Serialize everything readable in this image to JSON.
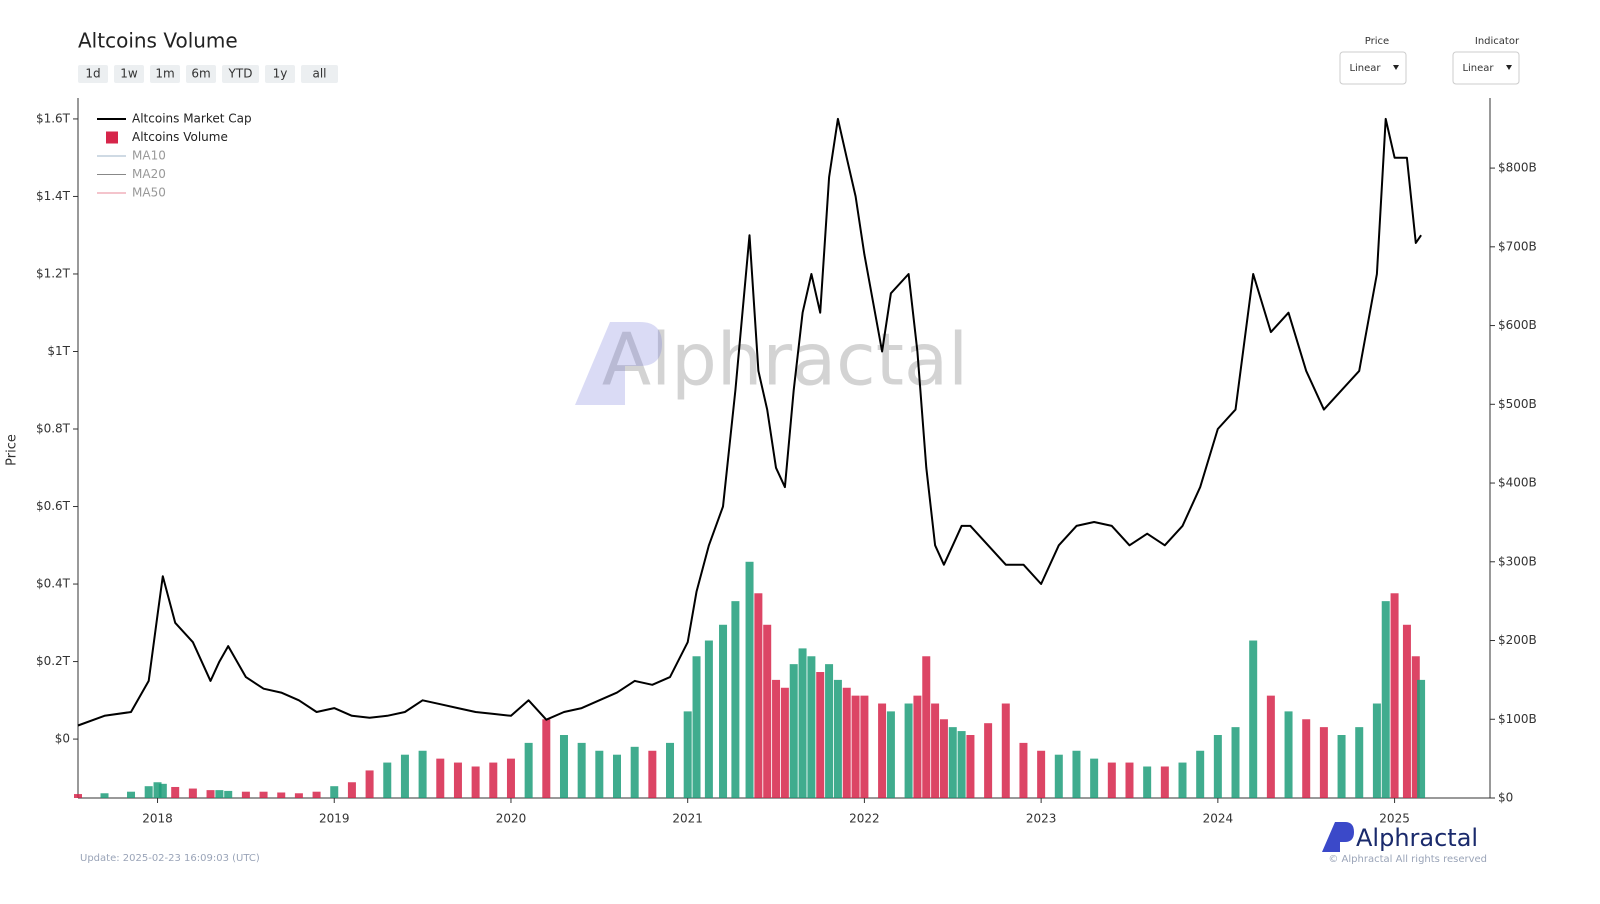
{
  "ui": {
    "range_buttons": [
      "1d",
      "1w",
      "1m",
      "6m",
      "YTD",
      "1y",
      "all"
    ],
    "price_select": {
      "label": "Price",
      "value": "Linear"
    },
    "indicator_select": {
      "label": "Indicator",
      "value": "Linear"
    },
    "update_text": "Update: 2025-02-23 16:09:03 (UTC)",
    "watermark": "Alphractal",
    "logo": "Alphractal",
    "copyright": "© Alphractal All rights reserved"
  },
  "chart_data": {
    "type": "line-bar",
    "title": "Altcoins Volume",
    "y_label": "Price",
    "x": [
      2017.55,
      2017.7,
      2017.85,
      2017.95,
      2018.0,
      2018.03,
      2018.1,
      2018.2,
      2018.3,
      2018.35,
      2018.4,
      2018.5,
      2018.6,
      2018.7,
      2018.8,
      2018.9,
      2019.0,
      2019.1,
      2019.2,
      2019.3,
      2019.4,
      2019.5,
      2019.6,
      2019.7,
      2019.8,
      2019.9,
      2020.0,
      2020.1,
      2020.2,
      2020.3,
      2020.4,
      2020.5,
      2020.6,
      2020.7,
      2020.8,
      2020.9,
      2021.0,
      2021.05,
      2021.12,
      2021.2,
      2021.27,
      2021.35,
      2021.4,
      2021.45,
      2021.5,
      2021.55,
      2021.6,
      2021.65,
      2021.7,
      2021.75,
      2021.8,
      2021.85,
      2021.9,
      2021.95,
      2022.0,
      2022.1,
      2022.15,
      2022.25,
      2022.3,
      2022.35,
      2022.4,
      2022.45,
      2022.5,
      2022.55,
      2022.6,
      2022.7,
      2022.8,
      2022.9,
      2023.0,
      2023.1,
      2023.2,
      2023.3,
      2023.4,
      2023.5,
      2023.6,
      2023.7,
      2023.8,
      2023.9,
      2024.0,
      2024.1,
      2024.2,
      2024.3,
      2024.4,
      2024.5,
      2024.6,
      2024.7,
      2024.8,
      2024.9,
      2024.95,
      2025.0,
      2025.07,
      2025.12,
      2025.15
    ],
    "xlim": [
      2017.55,
      2025.54
    ],
    "xticks": [
      2018,
      2019,
      2020,
      2021,
      2022,
      2023,
      2024,
      2025
    ],
    "ylim": [
      -0.152,
      1.654
    ],
    "yticks": [
      {
        "value": 0,
        "label": "$0"
      },
      {
        "value": 0.2,
        "label": "$0.2T"
      },
      {
        "value": 0.4,
        "label": "$0.4T"
      },
      {
        "value": 0.6,
        "label": "$0.6T"
      },
      {
        "value": 0.8,
        "label": "$0.8T"
      },
      {
        "value": 1,
        "label": "$1T"
      },
      {
        "value": 1.2,
        "label": "$1.2T"
      },
      {
        "value": 1.4,
        "label": "$1.4T"
      },
      {
        "value": 1.6,
        "label": "$1.6T"
      }
    ],
    "y2lim": [
      0,
      889
    ],
    "y2ticks": [
      {
        "value": 0,
        "label": "$0"
      },
      {
        "value": 100,
        "label": "$100B"
      },
      {
        "value": 200,
        "label": "$200B"
      },
      {
        "value": 300,
        "label": "$300B"
      },
      {
        "value": 400,
        "label": "$400B"
      },
      {
        "value": 500,
        "label": "$500B"
      },
      {
        "value": 600,
        "label": "$600B"
      },
      {
        "value": 700,
        "label": "$700B"
      },
      {
        "value": 800,
        "label": "$800B"
      }
    ],
    "series": [
      {
        "name": "Altcoins Market Cap",
        "color": "#000000",
        "kind": "line",
        "values": [
          0.035,
          0.06,
          0.07,
          0.15,
          0.32,
          0.42,
          0.3,
          0.25,
          0.15,
          0.2,
          0.24,
          0.16,
          0.13,
          0.12,
          0.1,
          0.07,
          0.08,
          0.06,
          0.055,
          0.06,
          0.07,
          0.1,
          0.09,
          0.08,
          0.07,
          0.065,
          0.06,
          0.1,
          0.05,
          0.07,
          0.08,
          0.1,
          0.12,
          0.15,
          0.14,
          0.16,
          0.25,
          0.38,
          0.5,
          0.6,
          0.9,
          1.3,
          0.95,
          0.85,
          0.7,
          0.65,
          0.9,
          1.1,
          1.2,
          1.1,
          1.45,
          1.6,
          1.5,
          1.4,
          1.25,
          1.0,
          1.15,
          1.2,
          1.0,
          0.7,
          0.5,
          0.45,
          0.5,
          0.55,
          0.55,
          0.5,
          0.45,
          0.45,
          0.4,
          0.5,
          0.55,
          0.56,
          0.55,
          0.5,
          0.53,
          0.5,
          0.55,
          0.65,
          0.8,
          0.85,
          1.2,
          1.05,
          1.1,
          0.95,
          0.85,
          0.9,
          0.95,
          1.2,
          1.6,
          1.5,
          1.5,
          1.28,
          1.3
        ]
      },
      {
        "name": "Altcoins Volume",
        "color": "#d6254a",
        "up_color": "#1f9e7a",
        "kind": "bar",
        "axis": "y2",
        "values": [
          5,
          6,
          8,
          15,
          20,
          18,
          14,
          12,
          10,
          10,
          9,
          8,
          8,
          7,
          6,
          8,
          15,
          20,
          35,
          45,
          55,
          60,
          50,
          45,
          40,
          45,
          50,
          70,
          100,
          80,
          70,
          60,
          55,
          65,
          60,
          70,
          110,
          180,
          200,
          220,
          250,
          300,
          260,
          220,
          150,
          140,
          170,
          190,
          180,
          160,
          170,
          150,
          140,
          130,
          130,
          120,
          110,
          120,
          130,
          180,
          120,
          100,
          90,
          85,
          80,
          95,
          120,
          70,
          60,
          55,
          60,
          50,
          45,
          45,
          40,
          40,
          45,
          60,
          80,
          90,
          200,
          130,
          110,
          100,
          90,
          80,
          90,
          120,
          250,
          260,
          220,
          180,
          150
        ]
      }
    ],
    "legend_extra": [
      {
        "name": "MA10",
        "color": "#9fb6c8"
      },
      {
        "name": "MA20",
        "color": "#888888"
      },
      {
        "name": "MA50",
        "color": "#e88a9a"
      }
    ]
  }
}
